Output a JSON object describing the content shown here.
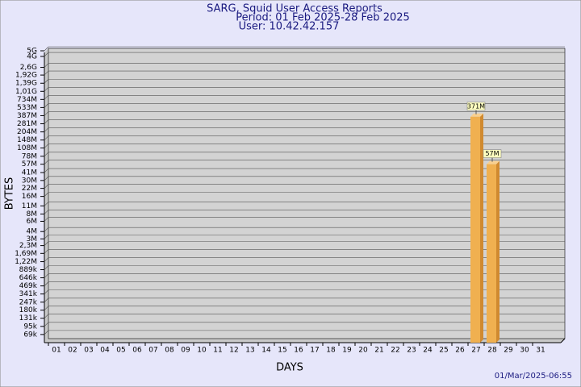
{
  "chart_data": {
    "type": "bar",
    "title": "SARG, Squid User Access Reports",
    "subtitle": "Period: 01 Feb 2025-28 Feb 2025",
    "user": "User: 10.42.42.157",
    "x_label": "DAYS",
    "y_label": "BYTES",
    "footer": "01/Mar/2025-06:55",
    "log": true,
    "grid": true,
    "color": "#f0b050",
    "categories": [
      "01",
      "02",
      "03",
      "04",
      "05",
      "06",
      "07",
      "08",
      "09",
      "10",
      "11",
      "12",
      "13",
      "14",
      "15",
      "16",
      "17",
      "18",
      "19",
      "20",
      "21",
      "22",
      "23",
      "24",
      "25",
      "26",
      "27",
      "28",
      "29",
      "30",
      "31"
    ],
    "values": [
      null,
      null,
      null,
      null,
      null,
      null,
      null,
      null,
      null,
      null,
      null,
      null,
      null,
      null,
      null,
      null,
      null,
      null,
      null,
      null,
      null,
      null,
      null,
      null,
      null,
      null,
      371000000,
      57000000,
      null,
      null,
      null
    ],
    "value_labels": [
      null,
      null,
      null,
      null,
      null,
      null,
      null,
      null,
      null,
      null,
      null,
      null,
      null,
      null,
      null,
      null,
      null,
      null,
      null,
      null,
      null,
      null,
      null,
      null,
      null,
      null,
      "371M",
      "57M",
      null,
      null,
      null
    ],
    "ylim": [
      50000,
      5500000000
    ],
    "yticks": [
      {
        "value": 69000,
        "label": "69k"
      },
      {
        "value": 95000,
        "label": "95k"
      },
      {
        "value": 131000,
        "label": "131k"
      },
      {
        "value": 180000,
        "label": "180k"
      },
      {
        "value": 247000,
        "label": "247k"
      },
      {
        "value": 341000,
        "label": "341k"
      },
      {
        "value": 469000,
        "label": "469k"
      },
      {
        "value": 646000,
        "label": "646k"
      },
      {
        "value": 889000,
        "label": "889k"
      },
      {
        "value": 1220000,
        "label": "1,22M"
      },
      {
        "value": 1690000,
        "label": "1,69M"
      },
      {
        "value": 2300000,
        "label": "2,3M"
      },
      {
        "value": 3000000,
        "label": "3M"
      },
      {
        "value": 4000000,
        "label": "4M"
      },
      {
        "value": 6000000,
        "label": "6M"
      },
      {
        "value": 8000000,
        "label": "8M"
      },
      {
        "value": 11000000,
        "label": "11M"
      },
      {
        "value": 16000000,
        "label": "16M"
      },
      {
        "value": 22000000,
        "label": "22M"
      },
      {
        "value": 30000000,
        "label": "30M"
      },
      {
        "value": 41000000,
        "label": "41M"
      },
      {
        "value": 57000000,
        "label": "57M"
      },
      {
        "value": 78000000,
        "label": "78M"
      },
      {
        "value": 108000000,
        "label": "108M"
      },
      {
        "value": 148000000,
        "label": "148M"
      },
      {
        "value": 204000000,
        "label": "204M"
      },
      {
        "value": 281000000,
        "label": "281M"
      },
      {
        "value": 387000000,
        "label": "387M"
      },
      {
        "value": 533000000,
        "label": "533M"
      },
      {
        "value": 734000000,
        "label": "734M"
      },
      {
        "value": 1010000000,
        "label": "1,01G"
      },
      {
        "value": 1390000000,
        "label": "1,39G"
      },
      {
        "value": 1920000000,
        "label": "1,92G"
      },
      {
        "value": 2600000000,
        "label": "2,6G"
      },
      {
        "value": 4000000000,
        "label": "4G"
      },
      {
        "value": 5000000000,
        "label": "5G"
      }
    ]
  }
}
